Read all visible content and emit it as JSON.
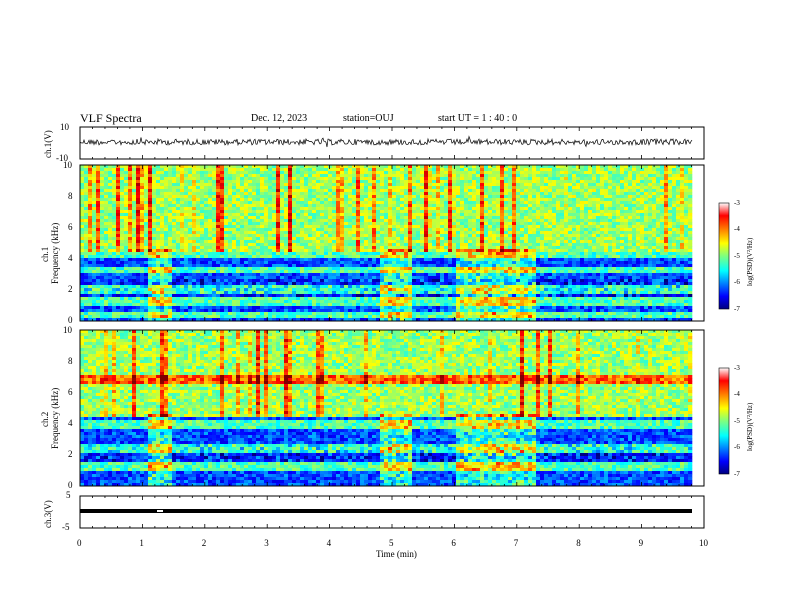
{
  "header": {
    "title": "VLF Spectra",
    "date": "Dec. 12, 2023",
    "station": "station=OUJ",
    "start_ut": "start  UT  =   1 : 40 : 0"
  },
  "chart_data": [
    {
      "type": "line",
      "panel": "ch1-waveform",
      "ylabel": "ch.1(V)",
      "ylim": [
        -10,
        10
      ],
      "yticks": [
        "10",
        "-10"
      ],
      "xlim": [
        0,
        10
      ],
      "description_values": {
        "baseline_V": 0,
        "noise_amplitude_V": 1
      }
    },
    {
      "type": "heatmap",
      "panel": "ch1-spectrogram",
      "ylabel": "ch.1\nFrequency (kHz)",
      "ylabel_line1": "ch.1",
      "ylabel_line2": "Frequency (kHz)",
      "ylim": [
        0,
        10
      ],
      "yticks": [
        "0",
        "2",
        "4",
        "6",
        "8",
        "10"
      ],
      "xlim": [
        0,
        10
      ],
      "colorbar": {
        "label": "log(PSD)(V²/Hz)",
        "range": [
          -7,
          -3
        ],
        "ticks": [
          "-3",
          "-4",
          "-5",
          "-6",
          "-7"
        ]
      },
      "bright_bands_kHz": [
        0.4,
        1.2,
        2.0,
        3.3,
        4.2
      ],
      "bright_band_intervals_min": [
        [
          1.1,
          1.5
        ],
        [
          4.8,
          5.3
        ],
        [
          6.0,
          7.3
        ]
      ]
    },
    {
      "type": "heatmap",
      "panel": "ch2-spectrogram",
      "ylabel_line1": "ch.2",
      "ylabel_line2": "Frequency (kHz)",
      "ylim": [
        0,
        10
      ],
      "yticks": [
        "0",
        "2",
        "4",
        "6",
        "8",
        "10"
      ],
      "xlim": [
        0,
        10
      ],
      "colorbar": {
        "label": "log(PSD)(V²/Hz)",
        "range": [
          -7,
          -3
        ],
        "ticks": [
          "-3",
          "-4",
          "-5",
          "-6",
          "-7"
        ]
      },
      "bright_bands_kHz": [
        1.2,
        2.4,
        3.9,
        6.8
      ],
      "bright_band_intervals_min": [
        [
          1.1,
          1.5
        ],
        [
          4.8,
          5.3
        ],
        [
          6.0,
          7.3
        ]
      ]
    },
    {
      "type": "line",
      "panel": "ch3-waveform",
      "ylabel": "ch.3(V)",
      "ylim": [
        -5,
        5
      ],
      "yticks": [
        "5",
        "-5"
      ],
      "xlim": [
        0,
        10
      ],
      "description_values": {
        "level_V": -1.5
      }
    }
  ],
  "xaxis": {
    "label": "Time (min)",
    "ticks": [
      "0",
      "1",
      "2",
      "3",
      "4",
      "5",
      "6",
      "7",
      "8",
      "9",
      "10"
    ]
  }
}
